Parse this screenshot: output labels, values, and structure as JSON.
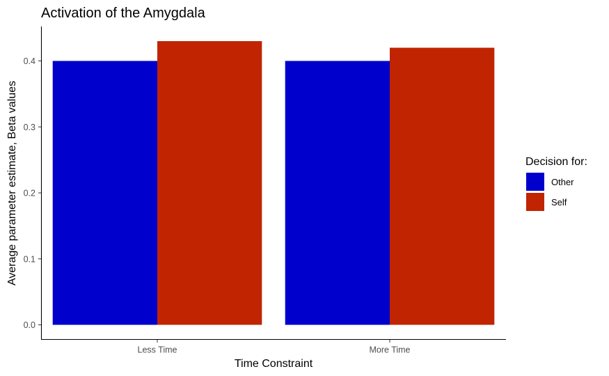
{
  "chart_data": {
    "type": "bar",
    "title": "Activation of the Amygdala",
    "xlabel": "Time Constraint",
    "ylabel": "Average parameter estimate, Beta values",
    "categories": [
      "Less Time",
      "More Time"
    ],
    "series": [
      {
        "name": "Other",
        "values": [
          0.4,
          0.4
        ],
        "color": "#0000CC"
      },
      {
        "name": "Self",
        "values": [
          0.43,
          0.42
        ],
        "color": "#C02400"
      }
    ],
    "ylim": [
      0,
      0.45
    ],
    "yticks": [
      0.0,
      0.1,
      0.2,
      0.3,
      0.4
    ],
    "ytick_labels": [
      "0.0",
      "0.1",
      "0.2",
      "0.3",
      "0.4"
    ],
    "grid": false,
    "legend": {
      "title": "Decision for:",
      "placement": "right"
    }
  }
}
